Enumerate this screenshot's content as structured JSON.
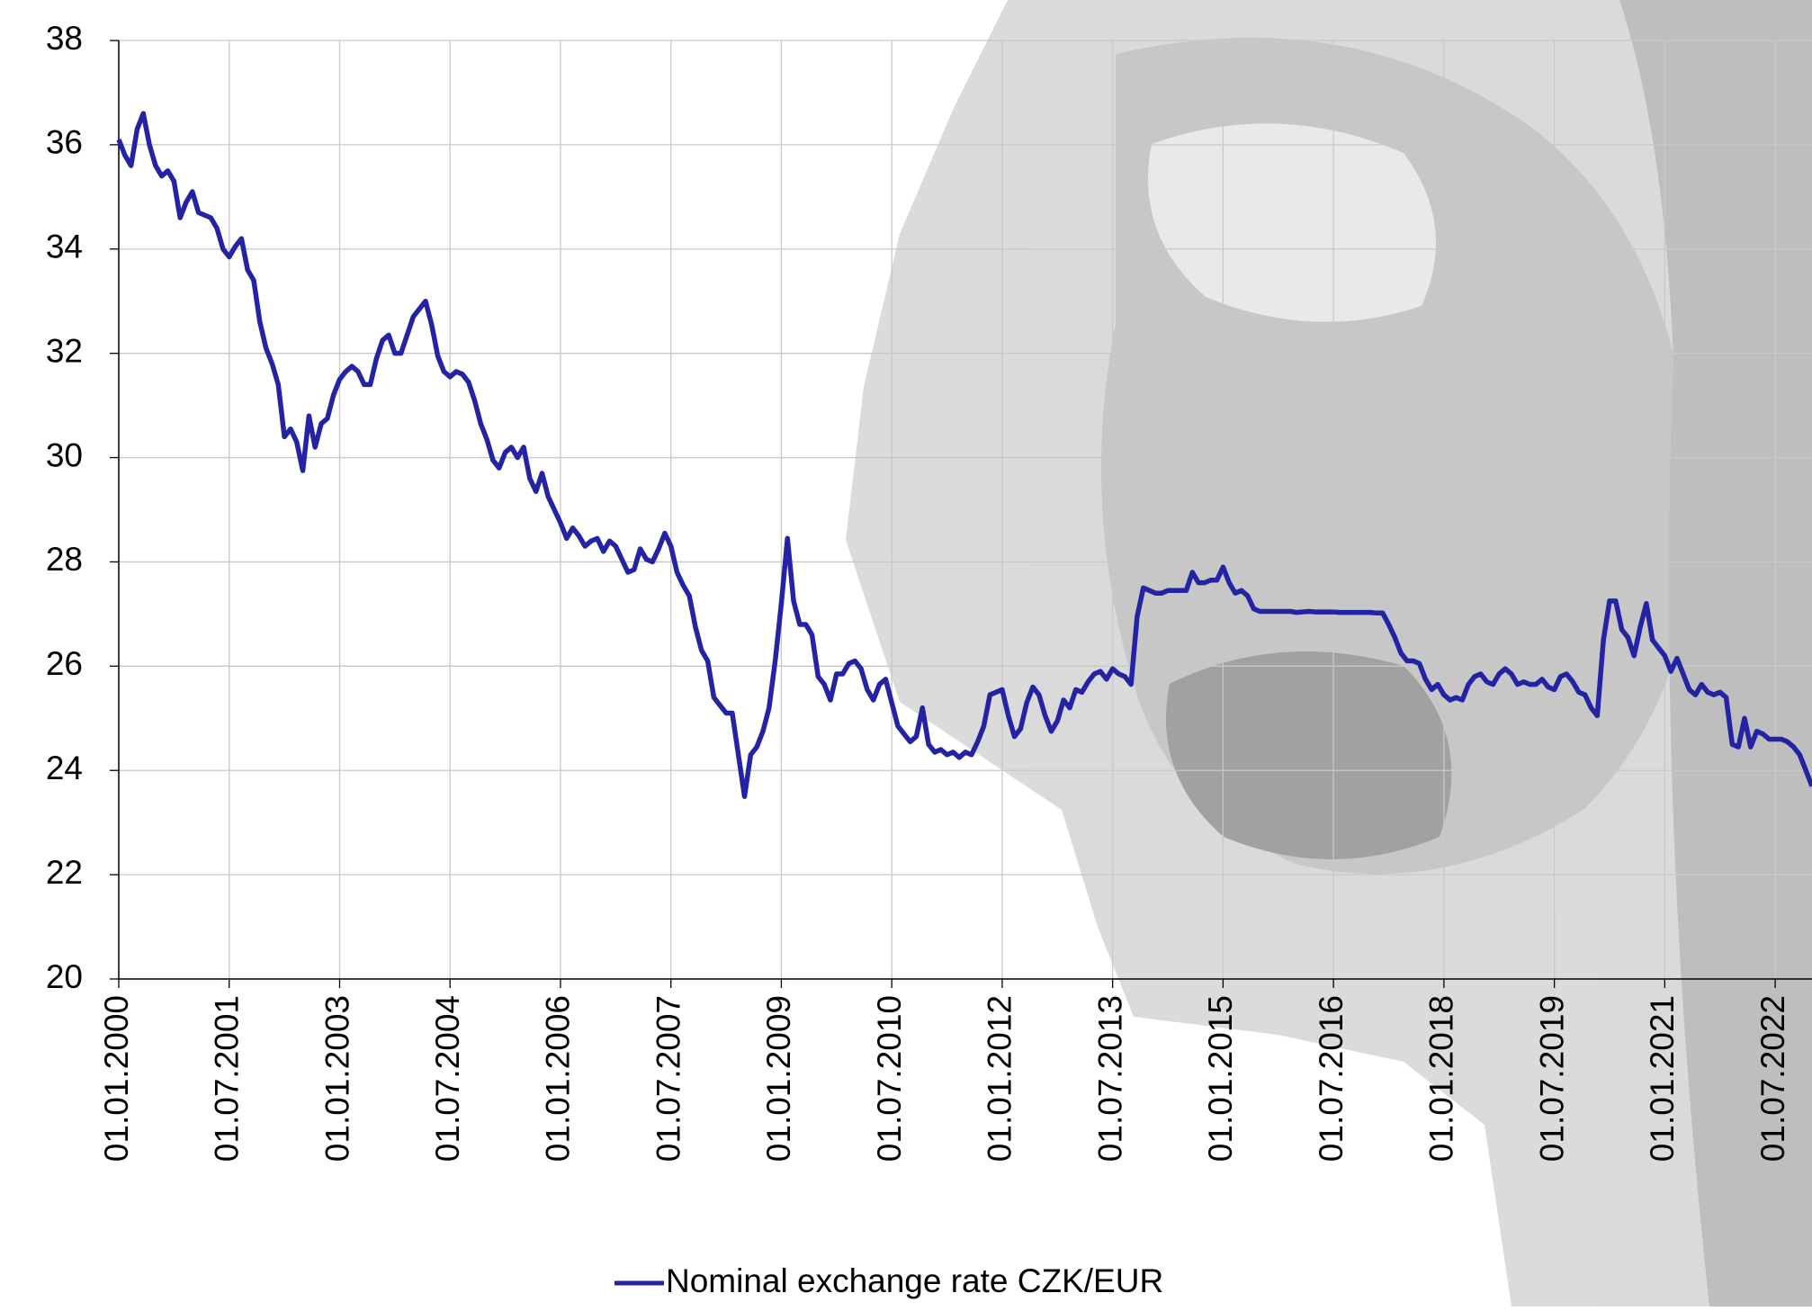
{
  "chart_data": {
    "type": "line",
    "categories": [
      "01.01.2000",
      null,
      null,
      null,
      null,
      null,
      null,
      null,
      null,
      null,
      null,
      null,
      null,
      null,
      null,
      null,
      null,
      null,
      "01.07.2001",
      null,
      null,
      null,
      null,
      null,
      null,
      null,
      null,
      null,
      null,
      null,
      null,
      null,
      null,
      null,
      null,
      null,
      "01.01.2003",
      null,
      null,
      null,
      null,
      null,
      null,
      null,
      null,
      null,
      null,
      null,
      null,
      null,
      null,
      null,
      null,
      null,
      "01.07.2004",
      null,
      null,
      null,
      null,
      null,
      null,
      null,
      null,
      null,
      null,
      null,
      null,
      null,
      null,
      null,
      null,
      null,
      "01.01.2006",
      null,
      null,
      null,
      null,
      null,
      null,
      null,
      null,
      null,
      null,
      null,
      null,
      null,
      null,
      null,
      null,
      null,
      "01.07.2007",
      null,
      null,
      null,
      null,
      null,
      null,
      null,
      null,
      null,
      null,
      null,
      null,
      null,
      null,
      null,
      null,
      null,
      "01.01.2009",
      null,
      null,
      null,
      null,
      null,
      null,
      null,
      null,
      null,
      null,
      null,
      null,
      null,
      null,
      null,
      null,
      null,
      "01.07.2010",
      null,
      null,
      null,
      null,
      null,
      null,
      null,
      null,
      null,
      null,
      null,
      null,
      null,
      null,
      null,
      null,
      null,
      "01.01.2012",
      null,
      null,
      null,
      null,
      null,
      null,
      null,
      null,
      null,
      null,
      null,
      null,
      null,
      null,
      null,
      null,
      null,
      "01.07.2013",
      null,
      null,
      null,
      null,
      null,
      null,
      null,
      null,
      null,
      null,
      null,
      null,
      null,
      null,
      null,
      null,
      null,
      "01.01.2015",
      null,
      null,
      null,
      null,
      null,
      null,
      null,
      null,
      null,
      null,
      null,
      null,
      null,
      null,
      null,
      null,
      null,
      "01.07.2016",
      null,
      null,
      null,
      null,
      null,
      null,
      null,
      null,
      null,
      null,
      null,
      null,
      null,
      null,
      null,
      null,
      null,
      "01.01.2018",
      null,
      null,
      null,
      null,
      null,
      null,
      null,
      null,
      null,
      null,
      null,
      null,
      null,
      null,
      null,
      null,
      null,
      "01.07.2019",
      null,
      null,
      null,
      null,
      null,
      null,
      null,
      null,
      null,
      null,
      null,
      null,
      null,
      null,
      null,
      null,
      null,
      "01.01.2021",
      null,
      null,
      null,
      null,
      null,
      null,
      null,
      null,
      null,
      null,
      null,
      null,
      null,
      null,
      null,
      null,
      null,
      "01.07.2022",
      null,
      null,
      null,
      null,
      null,
      null
    ],
    "series": [
      {
        "name": "Nominal exchange rate CZK/EUR",
        "color": "#2323a3",
        "values": [
          36.1,
          35.8,
          35.6,
          36.3,
          36.6,
          36.0,
          35.6,
          35.4,
          35.5,
          35.3,
          34.6,
          34.9,
          35.1,
          34.7,
          34.65,
          34.6,
          34.4,
          34.0,
          33.85,
          34.05,
          34.2,
          33.6,
          33.4,
          32.6,
          32.1,
          31.8,
          31.4,
          30.4,
          30.55,
          30.3,
          29.75,
          30.8,
          30.2,
          30.65,
          30.75,
          31.2,
          31.5,
          31.65,
          31.75,
          31.65,
          31.4,
          31.4,
          31.9,
          32.25,
          32.35,
          32.0,
          32.0,
          32.35,
          32.7,
          32.85,
          33.0,
          32.55,
          31.95,
          31.65,
          31.55,
          31.65,
          31.6,
          31.45,
          31.1,
          30.65,
          30.35,
          29.95,
          29.8,
          30.1,
          30.2,
          30.0,
          30.2,
          29.6,
          29.35,
          29.7,
          29.25,
          29.0,
          28.75,
          28.45,
          28.65,
          28.5,
          28.3,
          28.4,
          28.45,
          28.2,
          28.4,
          28.3,
          28.05,
          27.8,
          27.85,
          28.25,
          28.05,
          28.0,
          28.25,
          28.55,
          28.3,
          27.8,
          27.55,
          27.35,
          26.75,
          26.3,
          26.1,
          25.4,
          25.25,
          25.1,
          25.1,
          24.3,
          23.5,
          24.3,
          24.45,
          24.75,
          25.2,
          26.1,
          27.2,
          28.45,
          27.25,
          26.8,
          26.8,
          26.6,
          25.8,
          25.65,
          25.35,
          25.85,
          25.85,
          26.05,
          26.1,
          25.95,
          25.55,
          25.35,
          25.65,
          25.75,
          25.3,
          24.85,
          24.7,
          24.55,
          24.65,
          25.2,
          24.5,
          24.35,
          24.4,
          24.3,
          24.35,
          24.25,
          24.35,
          24.3,
          24.55,
          24.85,
          25.45,
          25.5,
          25.55,
          25.05,
          24.65,
          24.8,
          25.3,
          25.6,
          25.45,
          25.05,
          24.75,
          24.95,
          25.35,
          25.2,
          25.55,
          25.5,
          25.7,
          25.85,
          25.9,
          25.75,
          25.95,
          25.85,
          25.8,
          25.65,
          26.95,
          27.5,
          27.45,
          27.4,
          27.4,
          27.45,
          27.45,
          27.45,
          27.45,
          27.8,
          27.6,
          27.6,
          27.65,
          27.65,
          27.9,
          27.6,
          27.4,
          27.45,
          27.35,
          27.1,
          27.05,
          27.05,
          27.05,
          27.05,
          27.05,
          27.05,
          27.03,
          27.04,
          27.05,
          27.04,
          27.04,
          27.04,
          27.04,
          27.03,
          27.03,
          27.03,
          27.03,
          27.03,
          27.03,
          27.02,
          27.02,
          26.8,
          26.55,
          26.25,
          26.1,
          26.1,
          26.05,
          25.75,
          25.55,
          25.65,
          25.45,
          25.35,
          25.4,
          25.35,
          25.65,
          25.8,
          25.85,
          25.7,
          25.65,
          25.85,
          25.95,
          25.85,
          25.65,
          25.7,
          25.65,
          25.65,
          25.75,
          25.6,
          25.55,
          25.8,
          25.85,
          25.7,
          25.5,
          25.45,
          25.2,
          25.05,
          26.5,
          27.25,
          27.25,
          26.7,
          26.55,
          26.2,
          26.75,
          27.2,
          26.5,
          26.35,
          26.2,
          25.9,
          26.15,
          25.85,
          25.55,
          25.45,
          25.65,
          25.5,
          25.45,
          25.5,
          25.4,
          24.5,
          24.45,
          25.0,
          24.45,
          24.75,
          24.7,
          24.6,
          24.6,
          24.6,
          24.55,
          24.45,
          24.3,
          24.0,
          23.7
        ]
      }
    ],
    "ylim": [
      20,
      38
    ],
    "yticks": [
      20,
      22,
      24,
      26,
      28,
      30,
      32,
      34,
      36,
      38
    ],
    "grid": true,
    "legend": "bottom"
  }
}
